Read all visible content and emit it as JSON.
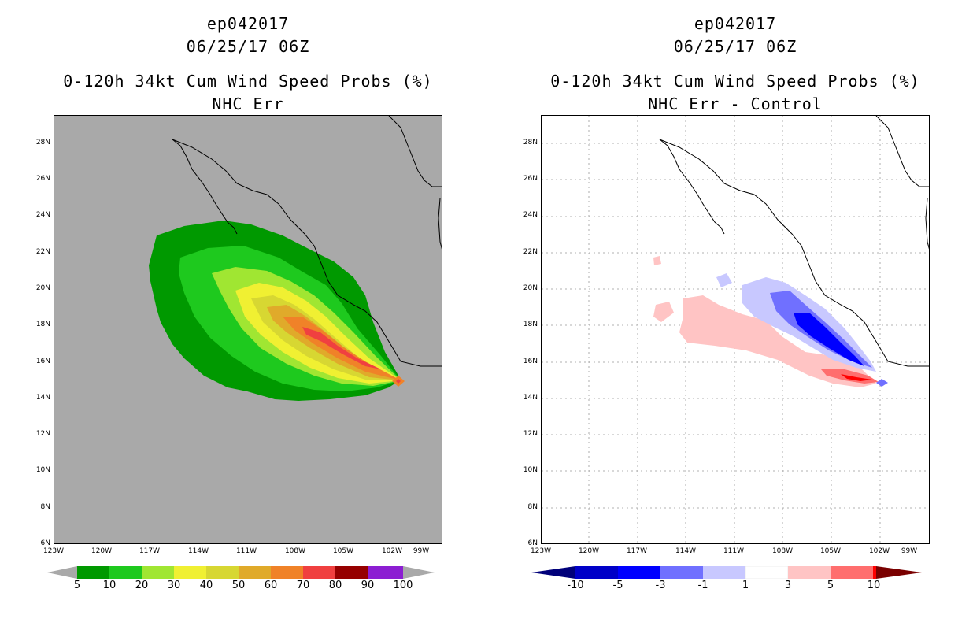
{
  "panels": [
    {
      "title_line1": "ep042017",
      "title_line2": "06/25/17 06Z",
      "title_line3": "0-120h 34kt Cum Wind Speed Probs (%)",
      "title_line4": "NHC Err",
      "background_color": "#a9a9a9",
      "colorbar": {
        "labels": [
          "5",
          "10",
          "20",
          "30",
          "40",
          "50",
          "60",
          "70",
          "80",
          "90",
          "100"
        ],
        "colors": [
          "#009900",
          "#1ec91e",
          "#a0e632",
          "#f0f032",
          "#d7d732",
          "#e0aa2a",
          "#f08228",
          "#f04040",
          "#960000",
          "#8c1ed2"
        ],
        "arrow_color": "#a9a9a9"
      }
    },
    {
      "title_line1": "ep042017",
      "title_line2": "06/25/17 06Z",
      "title_line3": "0-120h 34kt Cum Wind Speed Probs (%)",
      "title_line4": "NHC Err - Control",
      "background_color": "#ffffff",
      "colorbar": {
        "labels": [
          "-10",
          "-5",
          "-3",
          "-1",
          "1",
          "3",
          "5",
          "10"
        ],
        "colors": [
          "#0000c8",
          "#0000ff",
          "#7070ff",
          "#c8c8ff",
          "#ffffff",
          "#ffc4c4",
          "#ff6e6e",
          "#ff0000"
        ],
        "left_arrow_color": "#00007a",
        "right_arrow_color": "#7a0000"
      }
    }
  ],
  "axes": {
    "lat_labels": [
      "28N",
      "26N",
      "24N",
      "22N",
      "20N",
      "18N",
      "16N",
      "14N",
      "12N",
      "10N",
      "8N",
      "6N"
    ],
    "lon_labels": [
      "123W",
      "120W",
      "117W",
      "114W",
      "111W",
      "108W",
      "105W",
      "102W",
      "99W"
    ]
  }
}
